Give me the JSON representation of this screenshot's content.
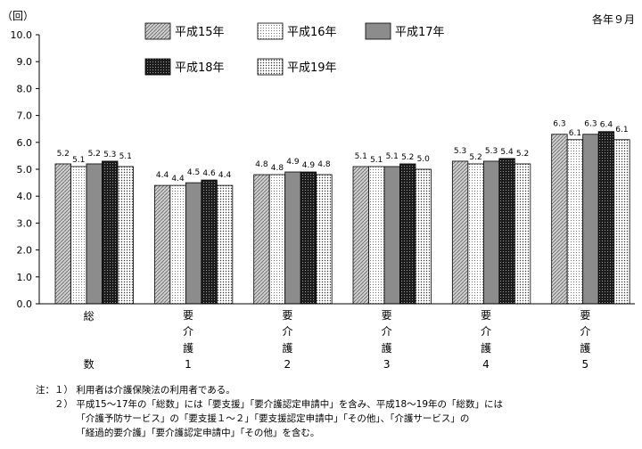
{
  "chart_data": {
    "type": "bar",
    "y_unit_label": "（回）",
    "period_label": "各年９月",
    "ylim": [
      0,
      10
    ],
    "yticks": [
      "0.0",
      "1.0",
      "2.0",
      "3.0",
      "4.0",
      "5.0",
      "6.0",
      "7.0",
      "8.0",
      "9.0",
      "10.0"
    ],
    "categories": [
      [
        "総",
        "数"
      ],
      [
        "要",
        "介",
        "護",
        "1"
      ],
      [
        "要",
        "介",
        "護",
        "2"
      ],
      [
        "要",
        "介",
        "護",
        "3"
      ],
      [
        "要",
        "介",
        "護",
        "4"
      ],
      [
        "要",
        "介",
        "護",
        "5"
      ]
    ],
    "legend_placement": "top",
    "series": [
      {
        "name": "平成15年",
        "pattern": "diagonal-hatch",
        "values": [
          5.2,
          4.4,
          4.8,
          5.1,
          5.3,
          6.3
        ],
        "labels": [
          "5.2",
          "4.4",
          "4.8",
          "5.1",
          "5.3",
          "6.3"
        ]
      },
      {
        "name": "平成16年",
        "pattern": "light-dots",
        "values": [
          5.1,
          4.4,
          4.8,
          5.1,
          5.2,
          6.1
        ],
        "labels": [
          "5.1",
          "4.4",
          "4.8",
          "5.1",
          "5.2",
          "6.1"
        ]
      },
      {
        "name": "平成17年",
        "pattern": "solid-gray",
        "values": [
          5.2,
          4.5,
          4.9,
          5.1,
          5.3,
          6.3
        ],
        "labels": [
          "5.2",
          "4.5",
          "4.9",
          "5.1",
          "5.3",
          "6.3"
        ]
      },
      {
        "name": "平成18年",
        "pattern": "dark-check",
        "values": [
          5.3,
          4.6,
          4.9,
          5.2,
          5.4,
          6.4
        ],
        "labels": [
          "5.3",
          "4.6",
          "4.9",
          "5.2",
          "5.4",
          "6.4"
        ]
      },
      {
        "name": "平成19年",
        "pattern": "dots",
        "values": [
          5.1,
          4.4,
          4.8,
          5.0,
          5.2,
          6.1
        ],
        "labels": [
          "5.1",
          "4.4",
          "4.8",
          "5.0",
          "5.2",
          "6.1"
        ]
      }
    ],
    "grid": false
  },
  "notes": {
    "line1": "注：１） 利用者は介護保険法の利用者である。",
    "line2": "　　２） 平成15～17年の「総数」には「要支援」「要介護認定申請中」を含み、平成18～19年の「総数」には",
    "line3": "　　　　 「介護予防サービス」の「要支援１～２」「要支援認定申請中」「その他」、「介護サービス」の",
    "line4": "　　　　 「経過的要介護」「要介護認定申請中」「その他」を含む。"
  },
  "colors": {
    "axis": "#000000",
    "hatch_bg": "#c8c8c8",
    "solid_gray": "#8c8c8c",
    "dark_bg": "#1a1a1a"
  }
}
